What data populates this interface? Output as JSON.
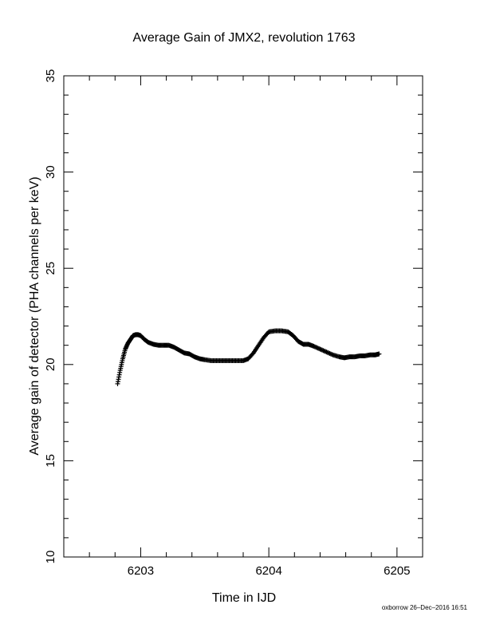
{
  "chart_data": {
    "type": "scatter",
    "title": "Average Gain of JMX2, revolution 1763",
    "xlabel": "Time in IJD",
    "ylabel": "Average gain of detector (PHA channels per keV)",
    "xlim": [
      6202.4,
      6205.2
    ],
    "ylim": [
      10,
      35
    ],
    "xticks": [
      6203,
      6204,
      6205
    ],
    "yticks": [
      10,
      15,
      20,
      25,
      30,
      35
    ],
    "marker": "+",
    "color": "#000000",
    "series": [
      {
        "x": [
          6202.82,
          6202.84,
          6202.86,
          6202.88,
          6202.9,
          6202.92,
          6202.94,
          6202.96,
          6202.98,
          6203.0,
          6203.03,
          6203.06,
          6203.1,
          6203.14,
          6203.18,
          6203.22,
          6203.26,
          6203.3,
          6203.34,
          6203.38,
          6203.42,
          6203.46,
          6203.5,
          6203.55,
          6203.6,
          6203.65,
          6203.7,
          6203.75,
          6203.8,
          6203.84,
          6203.88,
          6203.92,
          6203.96,
          6204.0,
          6204.05,
          6204.1,
          6204.15,
          6204.19,
          6204.23,
          6204.27,
          6204.31,
          6204.35,
          6204.4,
          6204.45,
          6204.5,
          6204.55,
          6204.59,
          6204.63,
          6204.67,
          6204.71,
          6204.75,
          6204.79,
          6204.83,
          6204.86
        ],
        "y": [
          19.0,
          19.7,
          20.3,
          20.8,
          21.1,
          21.3,
          21.5,
          21.55,
          21.55,
          21.5,
          21.3,
          21.15,
          21.05,
          21.0,
          21.0,
          21.0,
          20.9,
          20.75,
          20.6,
          20.55,
          20.4,
          20.3,
          20.25,
          20.2,
          20.2,
          20.2,
          20.2,
          20.2,
          20.2,
          20.3,
          20.6,
          21.0,
          21.4,
          21.7,
          21.75,
          21.75,
          21.7,
          21.5,
          21.2,
          21.05,
          21.05,
          20.95,
          20.8,
          20.65,
          20.5,
          20.4,
          20.35,
          20.4,
          20.4,
          20.45,
          20.45,
          20.5,
          20.5,
          20.55
        ]
      }
    ]
  },
  "footer": "oxborrow 26–Dec–2016 16:51"
}
